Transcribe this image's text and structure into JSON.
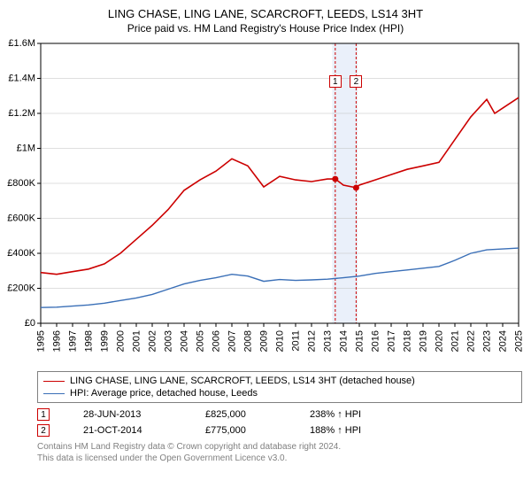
{
  "title": "LING CHASE, LING LANE, SCARCROFT, LEEDS, LS14 3HT",
  "subtitle": "Price paid vs. HM Land Registry's House Price Index (HPI)",
  "chart": {
    "type": "line",
    "background_color": "#ffffff",
    "grid_color": "#bfbfbf",
    "axis_color": "#000000",
    "xlim": [
      1995,
      2025
    ],
    "ylim": [
      0,
      1600000
    ],
    "ytick_step": 200000,
    "yticks": [
      "£0",
      "£200K",
      "£400K",
      "£600K",
      "£800K",
      "£1M",
      "£1.2M",
      "£1.4M",
      "£1.6M"
    ],
    "xticks": [
      1995,
      1996,
      1997,
      1998,
      1999,
      2000,
      2001,
      2002,
      2003,
      2004,
      2005,
      2006,
      2007,
      2008,
      2009,
      2010,
      2011,
      2012,
      2013,
      2014,
      2015,
      2016,
      2017,
      2018,
      2019,
      2020,
      2021,
      2022,
      2023,
      2024,
      2025
    ],
    "series": [
      {
        "name": "ling_chase",
        "label": "LING CHASE, LING LANE, SCARCROFT, LEEDS, LS14 3HT (detached house)",
        "color": "#cc0000",
        "line_width": 1.6,
        "points": [
          [
            1995,
            290000
          ],
          [
            1996,
            280000
          ],
          [
            1997,
            295000
          ],
          [
            1998,
            310000
          ],
          [
            1999,
            340000
          ],
          [
            2000,
            400000
          ],
          [
            2001,
            480000
          ],
          [
            2002,
            560000
          ],
          [
            2003,
            650000
          ],
          [
            2004,
            760000
          ],
          [
            2005,
            820000
          ],
          [
            2006,
            870000
          ],
          [
            2007,
            940000
          ],
          [
            2008,
            900000
          ],
          [
            2009,
            780000
          ],
          [
            2010,
            840000
          ],
          [
            2011,
            820000
          ],
          [
            2012,
            810000
          ],
          [
            2013,
            825000
          ],
          [
            2013.5,
            825000
          ],
          [
            2014,
            790000
          ],
          [
            2014.8,
            775000
          ],
          [
            2015,
            790000
          ],
          [
            2016,
            820000
          ],
          [
            2017,
            850000
          ],
          [
            2018,
            880000
          ],
          [
            2019,
            900000
          ],
          [
            2020,
            920000
          ],
          [
            2021,
            1050000
          ],
          [
            2022,
            1180000
          ],
          [
            2023,
            1280000
          ],
          [
            2023.5,
            1200000
          ],
          [
            2024,
            1230000
          ],
          [
            2025,
            1290000
          ]
        ]
      },
      {
        "name": "hpi",
        "label": "HPI: Average price, detached house, Leeds",
        "color": "#3a6fb7",
        "line_width": 1.4,
        "points": [
          [
            1995,
            90000
          ],
          [
            1996,
            92000
          ],
          [
            1997,
            98000
          ],
          [
            1998,
            105000
          ],
          [
            1999,
            115000
          ],
          [
            2000,
            130000
          ],
          [
            2001,
            145000
          ],
          [
            2002,
            165000
          ],
          [
            2003,
            195000
          ],
          [
            2004,
            225000
          ],
          [
            2005,
            245000
          ],
          [
            2006,
            260000
          ],
          [
            2007,
            280000
          ],
          [
            2008,
            270000
          ],
          [
            2009,
            240000
          ],
          [
            2010,
            250000
          ],
          [
            2011,
            245000
          ],
          [
            2012,
            248000
          ],
          [
            2013,
            252000
          ],
          [
            2014,
            260000
          ],
          [
            2015,
            270000
          ],
          [
            2016,
            285000
          ],
          [
            2017,
            295000
          ],
          [
            2018,
            305000
          ],
          [
            2019,
            315000
          ],
          [
            2020,
            325000
          ],
          [
            2021,
            360000
          ],
          [
            2022,
            400000
          ],
          [
            2023,
            420000
          ],
          [
            2024,
            425000
          ],
          [
            2025,
            430000
          ]
        ]
      }
    ],
    "sale_events": [
      {
        "id": "1",
        "x": 2013.49,
        "color": "#cc0000",
        "band_start": 2013.3,
        "band_end": 2014.9,
        "band_color": "#eaf0fa"
      },
      {
        "id": "2",
        "x": 2014.8,
        "color": "#cc0000"
      }
    ]
  },
  "legend": {
    "border_color": "#808080",
    "font_size": 11
  },
  "sales_table": {
    "rows": [
      {
        "marker": "1",
        "marker_color": "#cc0000",
        "date": "28-JUN-2013",
        "price": "£825,000",
        "hpi": "238% ↑ HPI"
      },
      {
        "marker": "2",
        "marker_color": "#cc0000",
        "date": "21-OCT-2014",
        "price": "£775,000",
        "hpi": "188% ↑ HPI"
      }
    ]
  },
  "footnote": {
    "line1": "Contains HM Land Registry data © Crown copyright and database right 2024.",
    "line2": "This data is licensed under the Open Government Licence v3.0.",
    "color": "#808080"
  }
}
